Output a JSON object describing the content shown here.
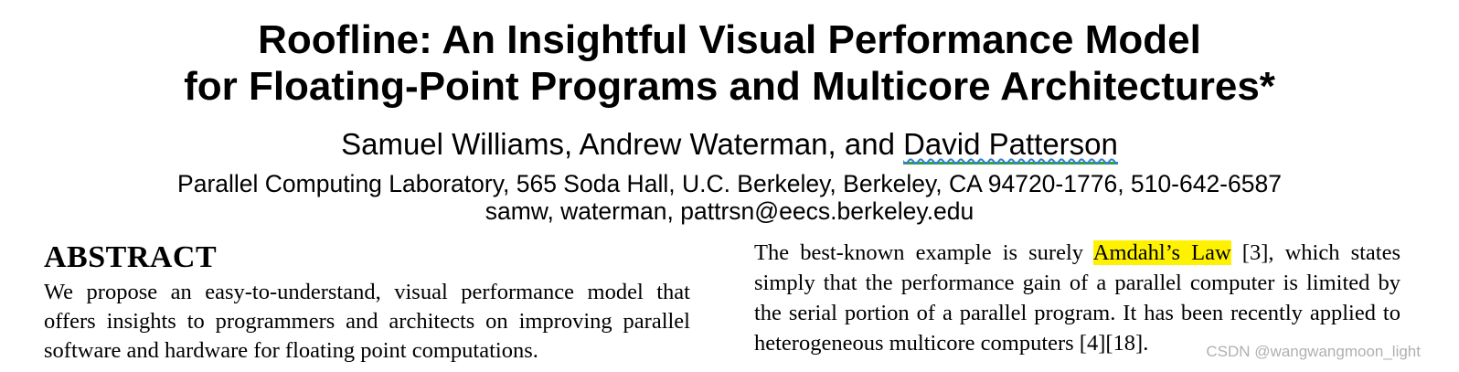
{
  "title": {
    "line1": "Roofline: An Insightful Visual Performance Model",
    "line2": "for Floating-Point Programs and Multicore Architectures*"
  },
  "authors": {
    "prefix": "Samuel Williams, Andrew Waterman, and ",
    "flagged_name": "David Patterson"
  },
  "affiliation": "Parallel Computing Laboratory, 565 Soda Hall, U.C. Berkeley, Berkeley, CA 94720-1776, 510-642-6587",
  "emails": "samw, waterman, pattrsn@eecs.berkeley.edu",
  "abstract": {
    "heading": "ABSTRACT",
    "text": "We propose an easy-to-understand, visual performance model that offers insights to programmers and architects on improving parallel software and hardware for floating point computations."
  },
  "right_column": {
    "before_highlight": "The best-known example is surely ",
    "highlight": "Amdahl’s Law",
    "after_highlight": " [3], which states simply that the performance gain of a parallel computer is limited by the serial portion of a parallel program. It has been recently applied to heterogeneous multicore computers [4][18]."
  },
  "watermark": "CSDN @wangwangmoon_light",
  "colors": {
    "highlight": "#fff200",
    "spellcheck_wavy": "#2f7fd8",
    "grammar_underline": "#3aa23a"
  }
}
